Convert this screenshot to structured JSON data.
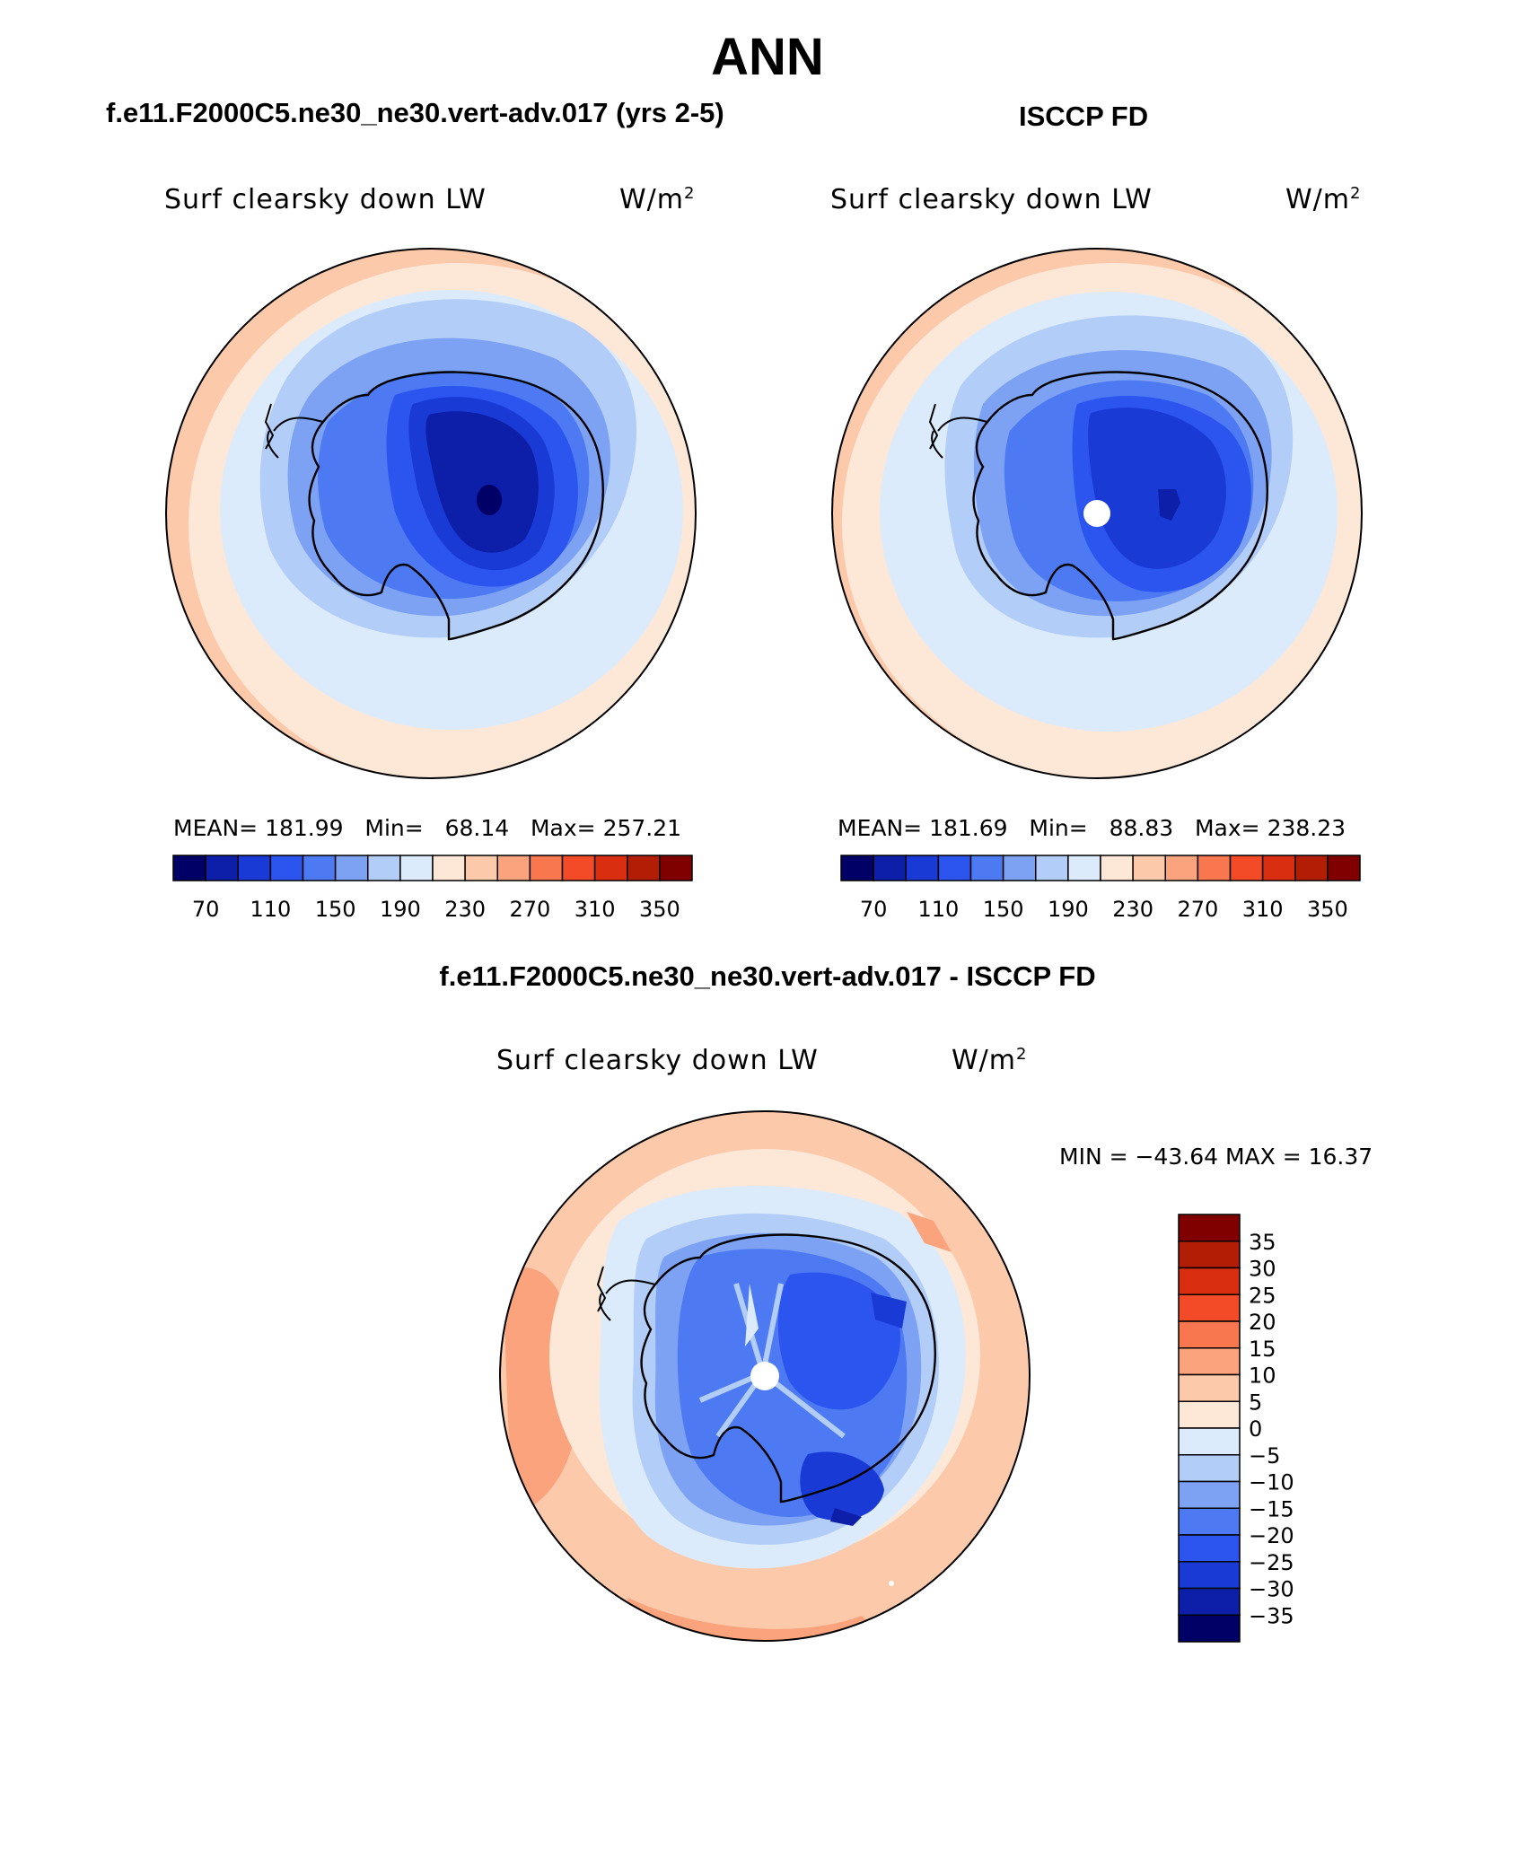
{
  "figure": {
    "title": "ANN",
    "colors": {
      "land_outline": "#000000",
      "missing": "#ffffff",
      "map_border": "#000000"
    }
  },
  "panels": [
    {
      "id": "model",
      "case_title": "f.e11.F2000C5.ne30_ne30.vert-adv.017 (yrs 2-5)",
      "field_label": "Surf clearsky down LW",
      "units": "W/m",
      "units_exp": "2",
      "mean_label": "MEAN=",
      "mean": "181.99",
      "min_label": "Min=",
      "min": "68.14",
      "max_label": "Max=",
      "max": "257.21",
      "levels": [
        "70",
        "110",
        "150",
        "190",
        "230",
        "270",
        "310",
        "350"
      ]
    },
    {
      "id": "obs",
      "case_title": "ISCCP FD",
      "field_label": "Surf clearsky down LW",
      "units": "W/m",
      "units_exp": "2",
      "mean_label": "MEAN=",
      "mean": "181.69",
      "min_label": "Min=",
      "min": "88.83",
      "max_label": "Max=",
      "max": "238.23",
      "levels": [
        "70",
        "110",
        "150",
        "190",
        "230",
        "270",
        "310",
        "350"
      ]
    }
  ],
  "difference": {
    "case_title": "f.e11.F2000C5.ne30_ne30.vert-adv.017 - ISCCP FD",
    "field_label": "Surf clearsky down LW",
    "units": "W/m",
    "units_exp": "2",
    "min_max_text": "MIN = −43.64 MAX =   16.37",
    "levels": [
      "35",
      "30",
      "25",
      "20",
      "15",
      "10",
      "5",
      "0",
      "−5",
      "−10",
      "−15",
      "−20",
      "−25",
      "−30",
      "−35"
    ]
  },
  "colorbars": {
    "abs_colors": [
      "#000066",
      "#0d1fa8",
      "#1a3ad6",
      "#2c55f0",
      "#4d7af2",
      "#7da2f4",
      "#b2cdf8",
      "#dcebfb",
      "#fde8d8",
      "#fcc9ab",
      "#faa37c",
      "#f8774f",
      "#f34a27",
      "#d92e10",
      "#b21e05",
      "#800000"
    ],
    "diff_colors": [
      "#800000",
      "#b21e05",
      "#d92e10",
      "#f34a27",
      "#f8774f",
      "#faa37c",
      "#fcc9ab",
      "#fde8d8",
      "#dcebfb",
      "#b2cdf8",
      "#7da2f4",
      "#4d7af2",
      "#2c55f0",
      "#1a3ad6",
      "#0d1fa8",
      "#000066"
    ]
  }
}
